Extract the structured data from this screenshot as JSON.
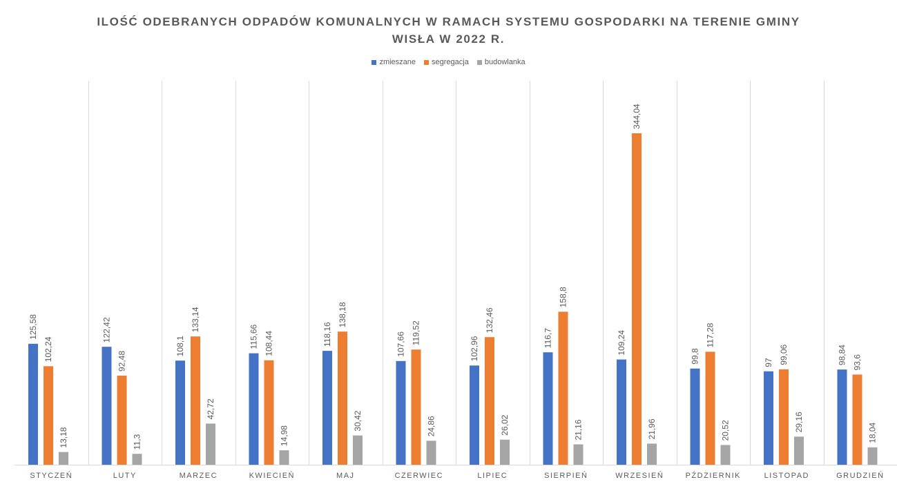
{
  "chart_data": {
    "type": "bar",
    "title_lines": [
      "ILOŚĆ ODEBRANYCH ODPADÓW KOMUNALNYCH W RAMACH SYSTEMU GOSPODARKI  NA TERENIE GMINY",
      "WISŁA  W 2022 R."
    ],
    "xlabel": "",
    "ylabel": "",
    "categories": [
      "STYCZEŃ",
      "LUTY",
      "MARZEC",
      "KWIECIEŃ",
      "MAJ",
      "CZERWIEC",
      "LIPIEC",
      "SIERPIEŃ",
      "WRZESIEŃ",
      "PŹDZIERNIK",
      "LISTOPAD",
      "GRUDZIEŃ"
    ],
    "series": [
      {
        "name": "zmieszane",
        "color": "#4472C4",
        "values": [
          125.58,
          122.42,
          108.1,
          115.66,
          118.16,
          107.66,
          102.96,
          116.7,
          109.24,
          99.8,
          97,
          98.84
        ],
        "labels": [
          "125,58",
          "122,42",
          "108,1",
          "115,66",
          "118,16",
          "107,66",
          "102,96",
          "116,7",
          "109,24",
          "99,8",
          "97",
          "98,84"
        ]
      },
      {
        "name": "segregacja",
        "color": "#ED7D31",
        "values": [
          102.24,
          92.48,
          133.14,
          108.44,
          138.18,
          119.52,
          132.46,
          158.8,
          344.04,
          117.28,
          99.06,
          93.6
        ],
        "labels": [
          "102,24",
          "92,48",
          "133,14",
          "108,44",
          "138,18",
          "119,52",
          "132,46",
          "158,8",
          "344,04",
          "117,28",
          "99,06",
          "93,6"
        ]
      },
      {
        "name": "budowlanka",
        "color": "#A5A5A5",
        "values": [
          13.18,
          11.3,
          42.72,
          14.98,
          30.42,
          24.86,
          26.02,
          21.16,
          21.96,
          20.52,
          29.16,
          18.04
        ],
        "labels": [
          "13,18",
          "11,3",
          "42,72",
          "14,98",
          "30,42",
          "24,86",
          "26,02",
          "21,16",
          "21,96",
          "20,52",
          "29,16",
          "18,04"
        ]
      }
    ],
    "ylim": [
      0,
      400
    ],
    "legend_position": "top",
    "grid": "vertical category separators",
    "colors": {
      "separator": "#D9D9D9",
      "text": "#595959",
      "baseline": "#D9D9D9"
    }
  }
}
